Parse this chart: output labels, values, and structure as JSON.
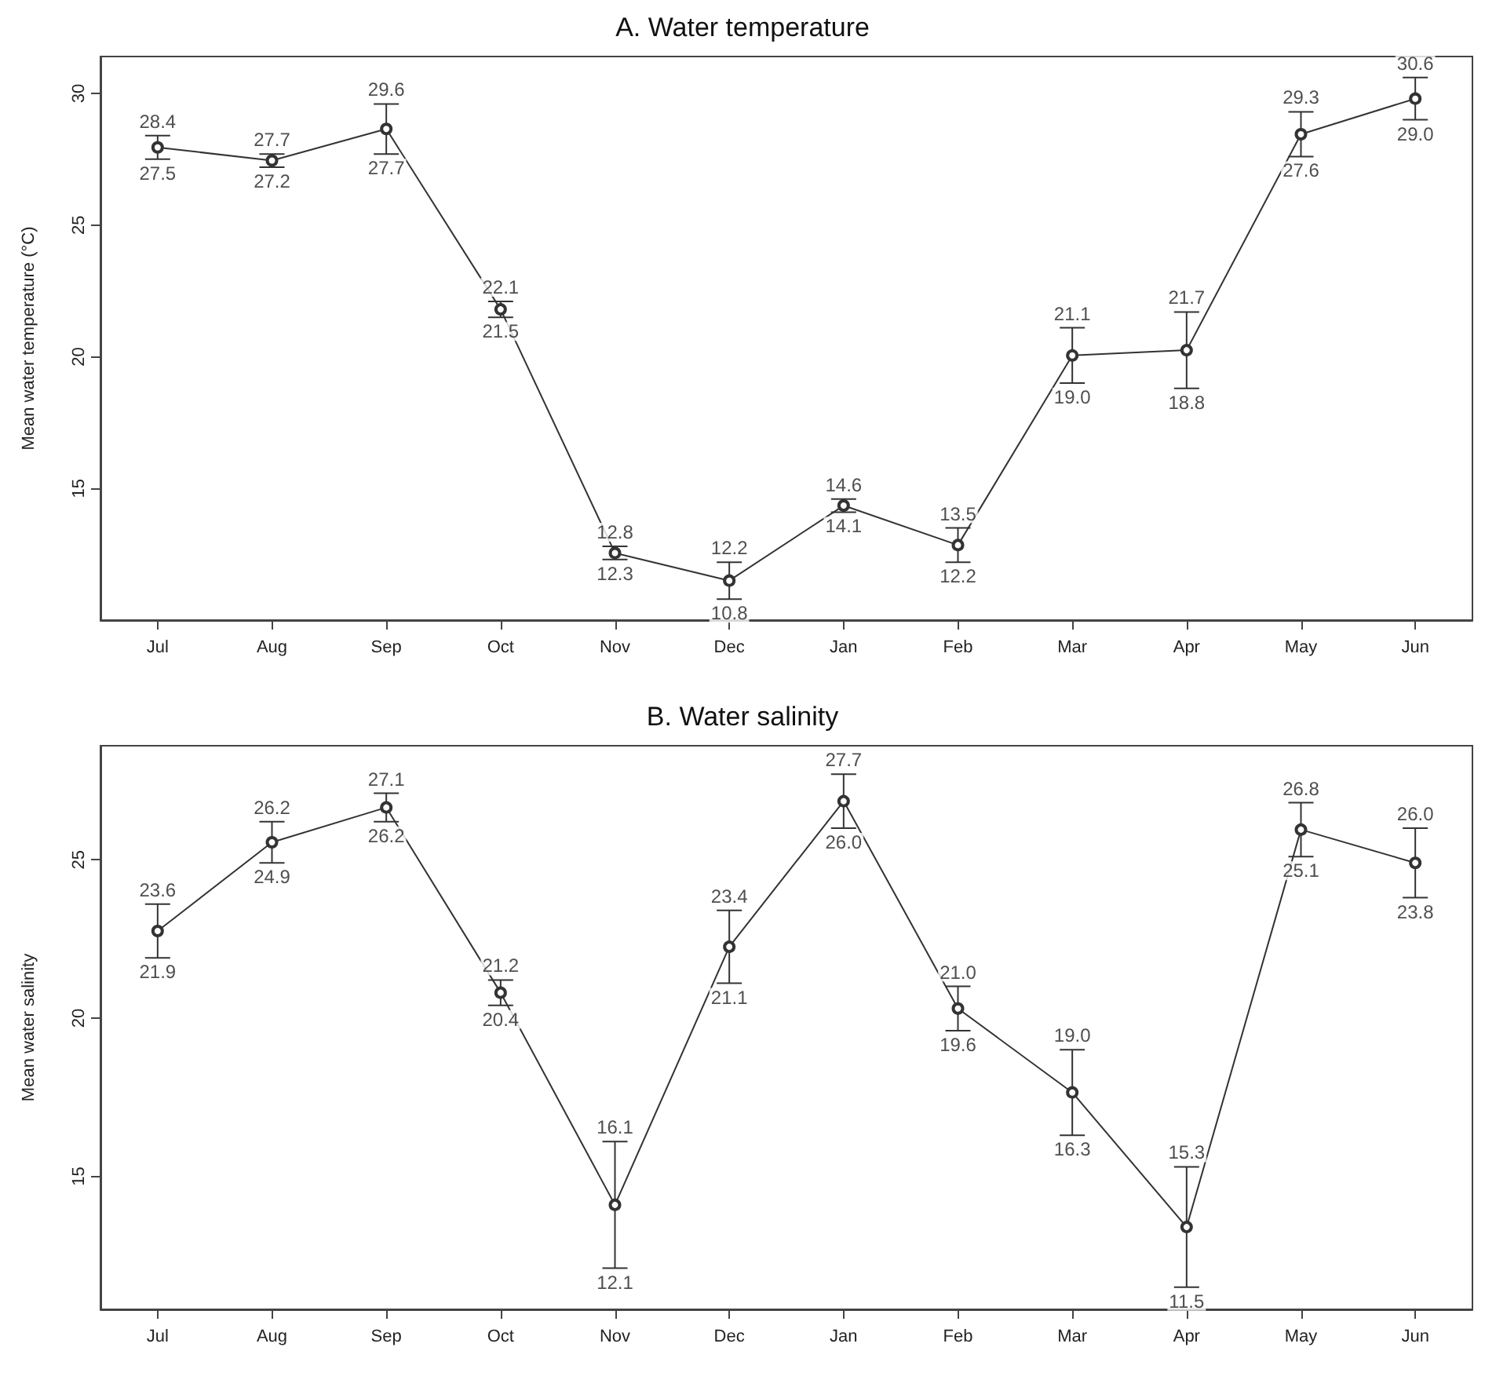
{
  "chart_data": [
    {
      "type": "line",
      "title": "A. Water temperature",
      "ylabel": "Mean water temperature (°C)",
      "categories": [
        "Jul",
        "Aug",
        "Sep",
        "Oct",
        "Nov",
        "Dec",
        "Jan",
        "Feb",
        "Mar",
        "Apr",
        "May",
        "Jun"
      ],
      "series": [
        {
          "color": "#333333",
          "values": [
            27.95,
            27.45,
            28.65,
            21.8,
            12.55,
            11.5,
            14.35,
            12.85,
            20.05,
            20.25,
            28.45,
            29.8
          ],
          "errors": [
            [
              27.5,
              28.4
            ],
            [
              27.2,
              27.7
            ],
            [
              27.7,
              29.6
            ],
            [
              21.5,
              22.1
            ],
            [
              12.3,
              12.8
            ],
            [
              10.8,
              12.2
            ],
            [
              14.1,
              14.6
            ],
            [
              12.2,
              13.5
            ],
            [
              19.0,
              21.1
            ],
            [
              18.8,
              21.7
            ],
            [
              27.6,
              29.3
            ],
            [
              29.0,
              30.6
            ]
          ]
        }
      ],
      "ylim": [
        10,
        31.4
      ],
      "yticks": [
        15,
        20,
        25,
        30
      ],
      "grid": false,
      "marker": "circle",
      "line_style": "solid",
      "annotations": [
        {
          "text": "27.5",
          "x": "Jul",
          "y": 27.5
        },
        {
          "text": "28.4",
          "x": "Jul",
          "y": 28.4
        },
        {
          "text": "27.2",
          "x": "Aug",
          "y": 27.2
        },
        {
          "text": "27.7",
          "x": "Aug",
          "y": 27.7
        },
        {
          "text": "27.7",
          "x": "Sep",
          "y": 27.7
        },
        {
          "text": "29.6",
          "x": "Sep",
          "y": 29.6
        },
        {
          "text": "21.5",
          "x": "Oct",
          "y": 21.5
        },
        {
          "text": "22.1",
          "x": "Oct",
          "y": 22.1
        },
        {
          "text": "12.3",
          "x": "Nov",
          "y": 12.3
        },
        {
          "text": "12.8",
          "x": "Nov",
          "y": 12.8
        },
        {
          "text": "10.8",
          "x": "Dec",
          "y": 10.8
        },
        {
          "text": "12.2",
          "x": "Dec",
          "y": 12.2
        },
        {
          "text": "14.1",
          "x": "Jan",
          "y": 14.1
        },
        {
          "text": "14.6",
          "x": "Jan",
          "y": 14.6
        },
        {
          "text": "12.2",
          "x": "Feb",
          "y": 12.2
        },
        {
          "text": "13.5",
          "x": "Feb",
          "y": 13.5
        },
        {
          "text": "19.0",
          "x": "Mar",
          "y": 19.0
        },
        {
          "text": "21.1",
          "x": "Mar",
          "y": 21.1
        },
        {
          "text": "18.8",
          "x": "Apr",
          "y": 18.8
        },
        {
          "text": "21.7",
          "x": "Apr",
          "y": 21.7
        },
        {
          "text": "27.6",
          "x": "May",
          "y": 27.6
        },
        {
          "text": "29.3",
          "x": "May",
          "y": 29.3
        },
        {
          "text": "29.0",
          "x": "Jun",
          "y": 29.0
        },
        {
          "text": "30.6",
          "x": "Jun",
          "y": 30.6
        }
      ]
    },
    {
      "type": "line",
      "title": "B. Water salinity",
      "ylabel": "Mean water salinity",
      "categories": [
        "Jul",
        "Aug",
        "Sep",
        "Oct",
        "Nov",
        "Dec",
        "Jan",
        "Feb",
        "Mar",
        "Apr",
        "May",
        "Jun"
      ],
      "series": [
        {
          "color": "#333333",
          "values": [
            22.75,
            25.55,
            26.65,
            20.8,
            14.1,
            22.25,
            26.85,
            20.3,
            17.65,
            13.4,
            25.95,
            24.9
          ],
          "errors": [
            [
              21.9,
              23.6
            ],
            [
              24.9,
              26.2
            ],
            [
              26.2,
              27.1
            ],
            [
              20.4,
              21.2
            ],
            [
              12.1,
              16.1
            ],
            [
              21.1,
              23.4
            ],
            [
              26.0,
              27.7
            ],
            [
              19.6,
              21.0
            ],
            [
              16.3,
              19.0
            ],
            [
              11.5,
              15.3
            ],
            [
              25.1,
              26.8
            ],
            [
              23.8,
              26.0
            ]
          ]
        }
      ],
      "ylim": [
        10.8,
        28.6
      ],
      "yticks": [
        15,
        20,
        25
      ],
      "grid": false,
      "marker": "circle",
      "line_style": "solid",
      "annotations": [
        {
          "text": "21.9",
          "x": "Jul",
          "y": 21.9
        },
        {
          "text": "23.6",
          "x": "Jul",
          "y": 23.6
        },
        {
          "text": "24.9",
          "x": "Aug",
          "y": 24.9
        },
        {
          "text": "26.2",
          "x": "Aug",
          "y": 26.2
        },
        {
          "text": "26.2",
          "x": "Sep",
          "y": 26.2
        },
        {
          "text": "27.1",
          "x": "Sep",
          "y": 27.1
        },
        {
          "text": "20.4",
          "x": "Oct",
          "y": 20.4
        },
        {
          "text": "21.2",
          "x": "Oct",
          "y": 21.2
        },
        {
          "text": "12.1",
          "x": "Nov",
          "y": 12.1
        },
        {
          "text": "16.1",
          "x": "Nov",
          "y": 16.1
        },
        {
          "text": "21.1",
          "x": "Dec",
          "y": 21.1
        },
        {
          "text": "23.4",
          "x": "Dec",
          "y": 23.4
        },
        {
          "text": "26.0",
          "x": "Jan",
          "y": 26.0
        },
        {
          "text": "27.7",
          "x": "Jan",
          "y": 27.7
        },
        {
          "text": "19.6",
          "x": "Feb",
          "y": 19.6
        },
        {
          "text": "21.0",
          "x": "Feb",
          "y": 21.0
        },
        {
          "text": "16.3",
          "x": "Mar",
          "y": 16.3
        },
        {
          "text": "19.0",
          "x": "Mar",
          "y": 19.0
        },
        {
          "text": "11.5",
          "x": "Apr",
          "y": 11.5
        },
        {
          "text": "15.3",
          "x": "Apr",
          "y": 15.3
        },
        {
          "text": "25.1",
          "x": "May",
          "y": 25.1
        },
        {
          "text": "26.8",
          "x": "May",
          "y": 26.8
        },
        {
          "text": "23.8",
          "x": "Jun",
          "y": 23.8
        },
        {
          "text": "26.0",
          "x": "Jun",
          "y": 26.0
        }
      ]
    }
  ]
}
